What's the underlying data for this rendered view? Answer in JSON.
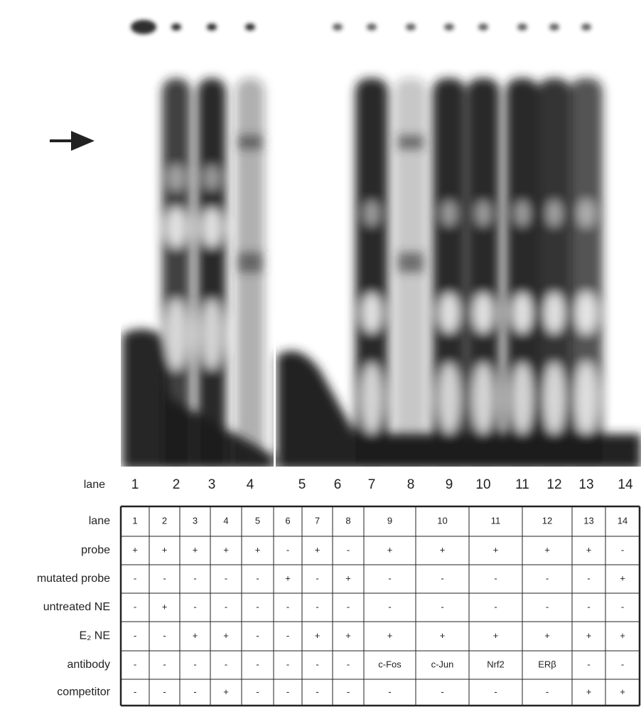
{
  "gel_lanes": [
    "lane",
    "1",
    "2",
    "3",
    "4",
    "5",
    "6",
    "7",
    "8",
    "9",
    "10",
    "11",
    "12",
    "13",
    "14"
  ],
  "table": {
    "rows": [
      [
        "lane",
        "1",
        "2",
        "3",
        "4",
        "5",
        "6",
        "7",
        "8",
        "9",
        "10",
        "11",
        "12",
        "13",
        "14"
      ],
      [
        "probe",
        "+",
        "+",
        "+",
        "+",
        "+",
        "-",
        "+",
        "-",
        "+",
        "+",
        "+",
        "+",
        "+",
        "-"
      ],
      [
        "mutated probe",
        "-",
        "-",
        "-",
        "-",
        "-",
        "+",
        "-",
        "+",
        "-",
        "-",
        "-",
        "-",
        "-",
        "+"
      ],
      [
        "untreated NE",
        "-",
        "+",
        "-",
        "-",
        "-",
        "-",
        "-",
        "-",
        "-",
        "-",
        "-",
        "-",
        "-",
        "-"
      ],
      [
        "E₂ NE",
        "-",
        "-",
        "+",
        "+",
        "-",
        "-",
        "+",
        "+",
        "+",
        "+",
        "+",
        "+",
        "+",
        "+"
      ],
      [
        "antibody",
        "-",
        "-",
        "-",
        "-",
        "-",
        "-",
        "-",
        "-",
        "c-Fos",
        "c-Jun",
        "Nrf2",
        "ERβ",
        "-",
        "-"
      ],
      [
        "competitor",
        "-",
        "-",
        "-",
        "+",
        "-",
        "-",
        "-",
        "-",
        "-",
        "-",
        "-",
        "-",
        "+",
        "+"
      ]
    ]
  }
}
